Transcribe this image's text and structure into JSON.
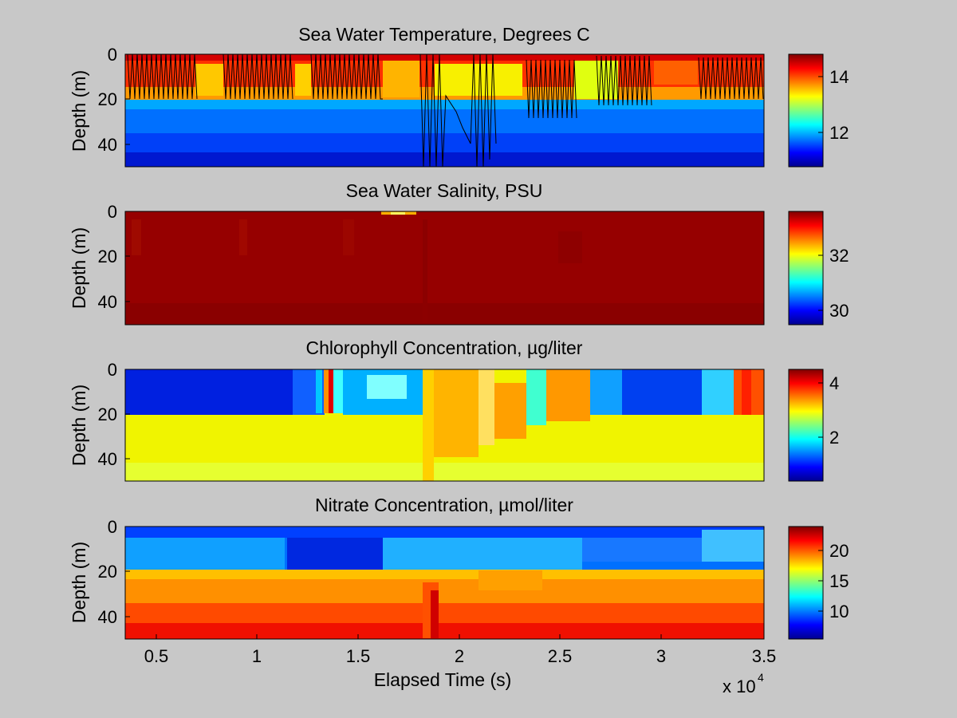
{
  "figure": {
    "background": "#c8c8c8",
    "colormap": "jet"
  },
  "chart_data": [
    {
      "type": "heatmap",
      "title": "Sea Water Temperature, Degrees C",
      "ylabel": "Depth (m)",
      "xlabel": "",
      "xlim": [
        3300,
        35000
      ],
      "ylim": [
        0,
        50
      ],
      "y_reversed": true,
      "yticks": [
        "0",
        "20",
        "40"
      ],
      "colorbar": {
        "range": [
          10.8,
          14.8
        ],
        "ticks": [
          "14",
          "12"
        ]
      },
      "overlay": "black CTD cast trace lines",
      "summary_profile": {
        "depth": [
          0,
          10,
          20,
          22,
          30,
          50
        ],
        "value": [
          14.5,
          13.8,
          13.2,
          11.8,
          11.5,
          10.9
        ]
      }
    },
    {
      "type": "heatmap",
      "title": "Sea Water Salinity, PSU",
      "ylabel": "Depth (m)",
      "xlabel": "",
      "xlim": [
        3300,
        35000
      ],
      "ylim": [
        0,
        50
      ],
      "y_reversed": true,
      "yticks": [
        "0",
        "20",
        "40"
      ],
      "colorbar": {
        "range": [
          29.5,
          33.6
        ],
        "ticks": [
          "32",
          "30"
        ]
      },
      "summary_profile": {
        "depth": [
          0,
          20,
          50
        ],
        "value": [
          33.4,
          33.4,
          33.5
        ]
      }
    },
    {
      "type": "heatmap",
      "title": "Chlorophyll Concentration, µg/liter",
      "ylabel": "Depth (m)",
      "xlabel": "",
      "xlim": [
        3300,
        35000
      ],
      "ylim": [
        0,
        50
      ],
      "y_reversed": true,
      "yticks": [
        "0",
        "20",
        "40"
      ],
      "colorbar": {
        "range": [
          0.5,
          4.6
        ],
        "ticks": [
          "4",
          "2"
        ]
      },
      "summary_profile": {
        "depth": [
          0,
          20,
          22,
          50
        ],
        "value": [
          1.0,
          1.0,
          3.0,
          2.9
        ]
      }
    },
    {
      "type": "heatmap",
      "title": "Nitrate Concentration, µmol/liter",
      "ylabel": "Depth (m)",
      "xlabel": "Elapsed Time (s)",
      "xlim": [
        3300,
        35000
      ],
      "ylim": [
        0,
        50
      ],
      "y_reversed": true,
      "yticks": [
        "0",
        "20",
        "40"
      ],
      "xticks": [
        "0.5",
        "1",
        "1.5",
        "2",
        "2.5",
        "3",
        "3.5"
      ],
      "x_multiplier": {
        "base": "x 10",
        "exponent": "4"
      },
      "colorbar": {
        "range": [
          5.5,
          24
        ],
        "ticks": [
          "20",
          "15",
          "10"
        ]
      },
      "summary_profile": {
        "depth": [
          0,
          10,
          20,
          25,
          40,
          50
        ],
        "value": [
          7,
          8,
          10,
          18,
          21,
          23
        ]
      }
    }
  ]
}
